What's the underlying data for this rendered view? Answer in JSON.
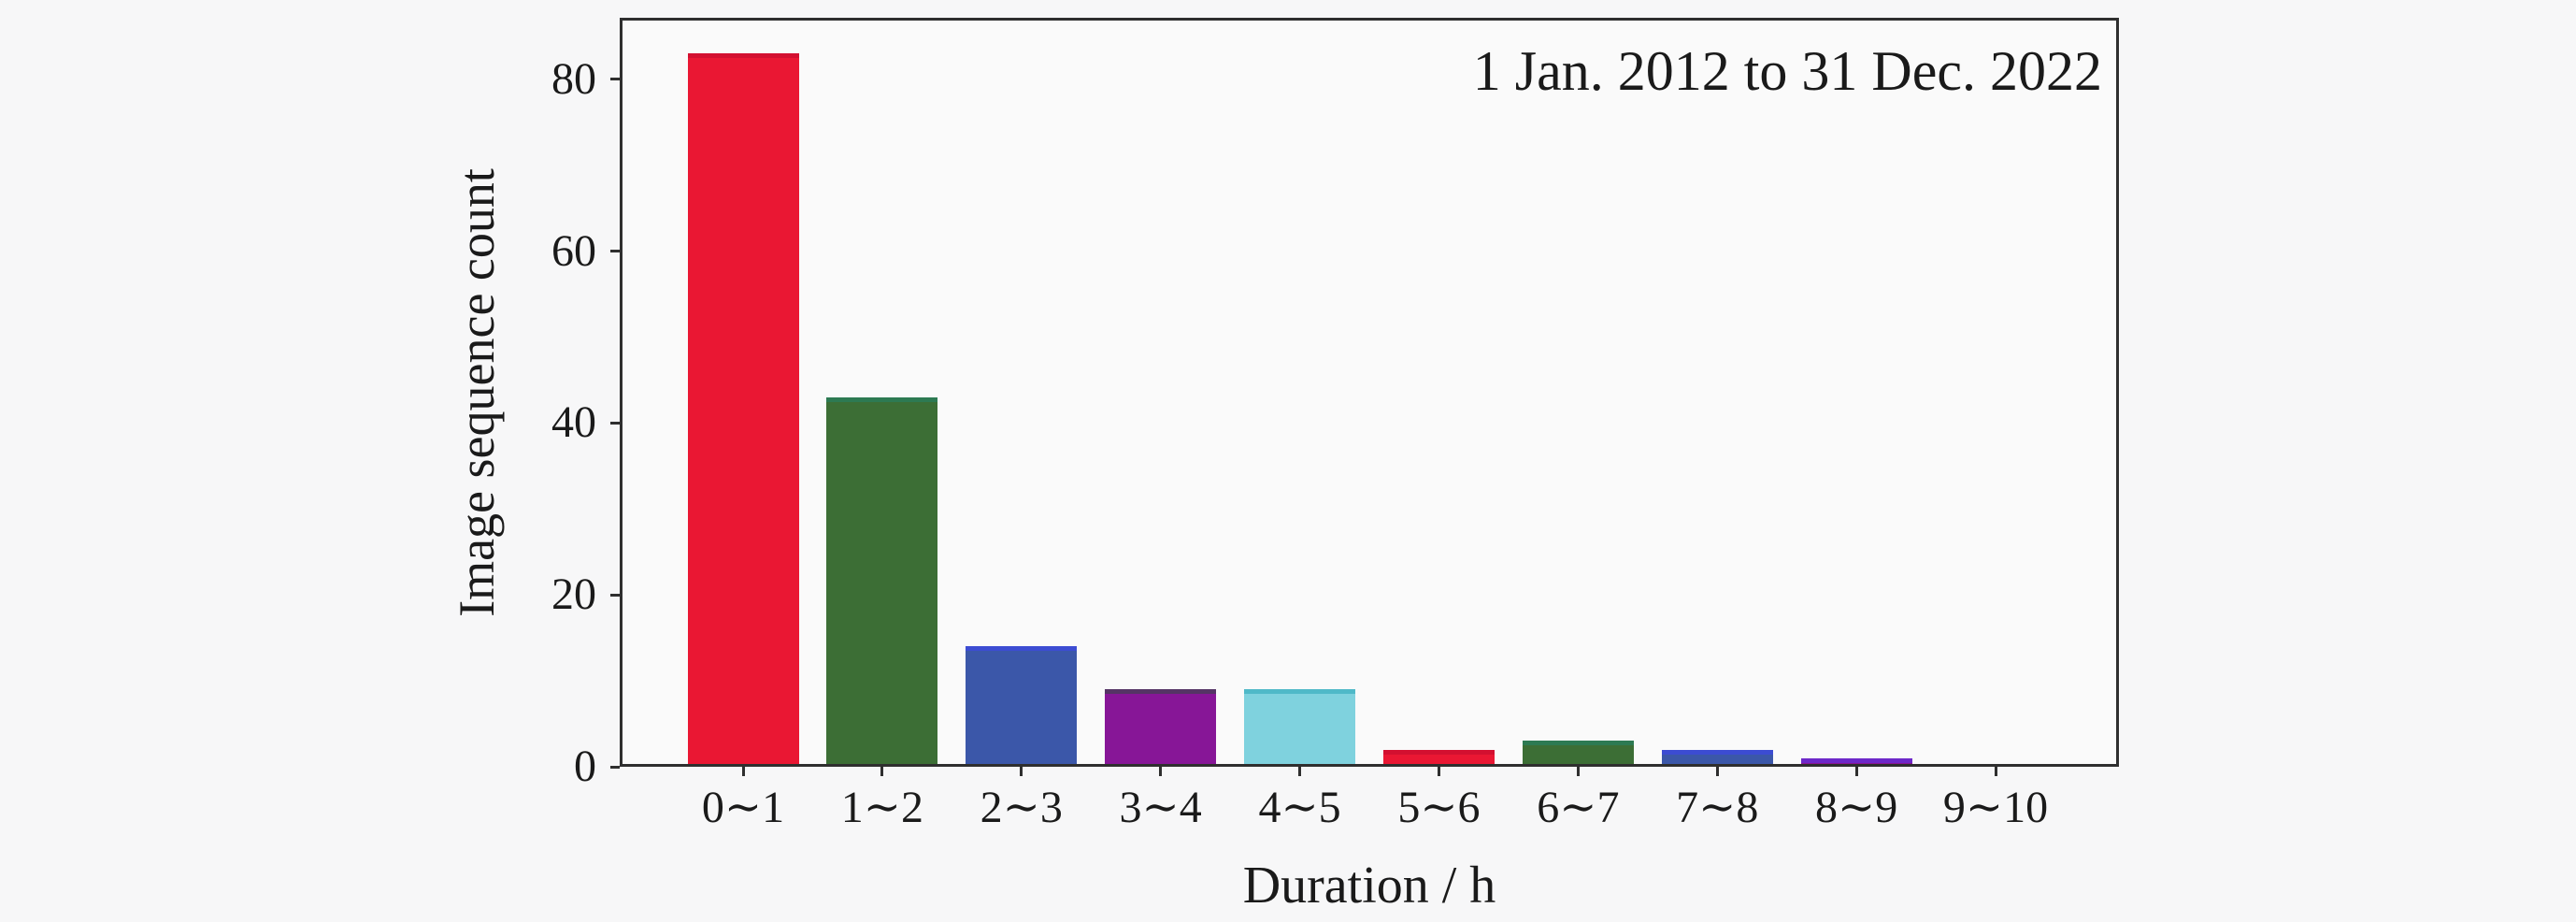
{
  "figure": {
    "background": "#f7f7f8",
    "plot_background": "#fafafa",
    "frame_color": "#2f2f2f",
    "text_color": "#1a1a1a"
  },
  "chart_data": {
    "type": "bar",
    "title": "",
    "annotation": "1 Jan. 2012 to 31 Dec. 2022",
    "xlabel": "Duration / h",
    "ylabel": "Image sequence count",
    "categories": [
      "0∼1",
      "1∼2",
      "2∼3",
      "3∼4",
      "4∼5",
      "5∼6",
      "6∼7",
      "7∼8",
      "8∼9",
      "9∼10"
    ],
    "values": [
      83,
      43,
      14,
      9,
      9,
      2,
      3,
      2,
      1,
      0
    ],
    "bar_colors": [
      "#ea1733",
      "#3c6e35",
      "#3b57a9",
      "#871697",
      "#7fd2de",
      "#ea1733",
      "#3c6e35",
      "#3b57a9",
      "#871697",
      "#7fd2de"
    ],
    "bar_edge_colors": [
      "#d31030",
      "#2d7a52",
      "#3c4cd2",
      "#553465",
      "#4fb9c8",
      "#d31030",
      "#2d7a52",
      "#3c4cd2",
      "#6d28c9",
      "#4fb9c8"
    ],
    "yticks": [
      0,
      20,
      40,
      60,
      80
    ],
    "ylim": [
      0,
      87.15
    ],
    "grid": false,
    "legend_position": "none"
  }
}
